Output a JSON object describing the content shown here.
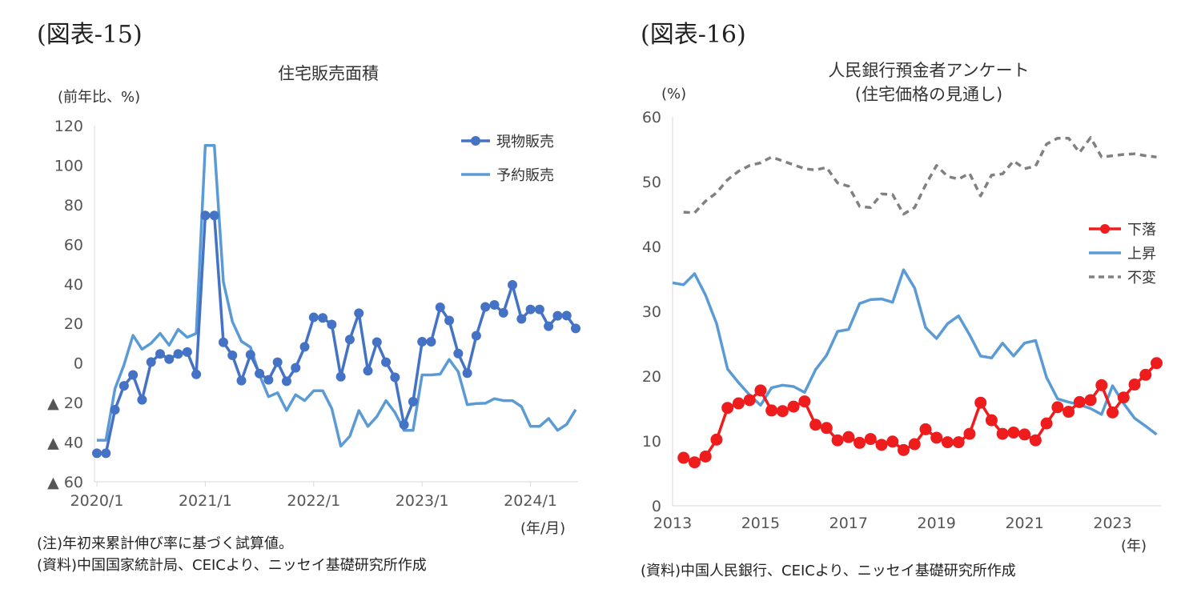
{
  "charts": [
    {
      "fig_label": "(図表-15)",
      "title": "住宅販売面積",
      "unit_label": "(前年比、%)",
      "x_unit_label": "(年/月)",
      "notes": [
        "(注)年初来累計伸び率に基づく試算値。",
        "(資料)中国国家統計局、CEICより、ニッセイ基礎研究所作成"
      ]
    },
    {
      "fig_label": "(図表-16)",
      "title_lines": [
        "人民銀行預金者アンケート",
        "(住宅価格の見通し)"
      ],
      "unit_label": "(%)",
      "x_unit_label": "(年)",
      "notes": [
        "(資料)中国人民銀行、CEICより、ニッセイ基礎研究所作成"
      ]
    }
  ],
  "chart_data": [
    {
      "type": "line",
      "title": "住宅販売面積",
      "ylabel": "(前年比、%)",
      "xlabel": "(年/月)",
      "ylim": [
        -60,
        120
      ],
      "yticks": [
        120,
        100,
        80,
        60,
        40,
        20,
        0,
        -20,
        -40,
        -60
      ],
      "ytick_labels": [
        "120",
        "100",
        "80",
        "60",
        "40",
        "20",
        "0",
        "▲ 20",
        "▲ 40",
        "▲ 60"
      ],
      "xtick_labels": [
        "2020/1",
        "2021/1",
        "2022/1",
        "2023/1",
        "2024/1"
      ],
      "xtick_index": [
        0,
        12,
        24,
        36,
        48
      ],
      "n_points": 54,
      "grid": false,
      "legend_position": "top-right",
      "series": [
        {
          "name": "現物販売",
          "color": "#4472c4",
          "marker": "circle",
          "values": [
            -45.6,
            -45.6,
            -23.6,
            -11.5,
            -6,
            -18.6,
            0.5,
            4.6,
            2,
            4.6,
            5.6,
            -5.7,
            74.6,
            74.6,
            10.5,
            3.9,
            -8.9,
            4.2,
            -5.3,
            -8.5,
            0.4,
            -9.2,
            -2.4,
            8.2,
            23.1,
            22.8,
            19.5,
            -6.9,
            11.9,
            25.2,
            -3.9,
            10.6,
            0.4,
            -7.2,
            -31.2,
            -19.5,
            10.8,
            10.8,
            28.2,
            21.5,
            4.8,
            -5.1,
            13.8,
            28.4,
            29.4,
            25.4,
            39.5,
            22.3,
            27.1,
            27.1,
            18.6,
            23.9,
            24,
            17.5
          ]
        },
        {
          "name": "予約販売",
          "color": "#5b9bd5",
          "marker": "none",
          "values": [
            -39,
            -39,
            -13,
            -1,
            14,
            7,
            10,
            15,
            9,
            17,
            13,
            15,
            110,
            110,
            41,
            21,
            11,
            8,
            -6,
            -17,
            -15,
            -24,
            -16,
            -19,
            -14,
            -14,
            -23,
            -42,
            -37,
            -24,
            -32,
            -27,
            -19,
            -25,
            -34,
            -34,
            -6,
            -6,
            -5.6,
            1.8,
            -4.4,
            -21,
            -20.5,
            -20.3,
            -18,
            -19,
            -19,
            -22,
            -32,
            -32,
            -28,
            -34,
            -31,
            -23.5
          ]
        }
      ]
    },
    {
      "type": "line",
      "title": "人民銀行預金者アンケート (住宅価格の見通し)",
      "ylabel": "(%)",
      "xlabel": "(年)",
      "ylim": [
        0,
        60
      ],
      "yticks": [
        0,
        10,
        20,
        30,
        40,
        50,
        60
      ],
      "xtick_labels": [
        "2013",
        "2015",
        "2017",
        "2019",
        "2021",
        "2023"
      ],
      "xtick_values": [
        2013,
        2015,
        2017,
        2019,
        2021,
        2023
      ],
      "xlim": [
        2013,
        2024.1
      ],
      "grid": false,
      "legend_position": "right",
      "series": [
        {
          "name": "下落",
          "color": "#ee1c1c",
          "marker": "circle",
          "dash": "solid",
          "x": [
            2013.25,
            2013.5,
            2013.75,
            2014,
            2014.25,
            2014.5,
            2014.75,
            2015,
            2015.25,
            2015.5,
            2015.75,
            2016,
            2016.25,
            2016.5,
            2016.75,
            2017,
            2017.25,
            2017.5,
            2017.75,
            2018,
            2018.25,
            2018.5,
            2018.75,
            2019,
            2019.25,
            2019.5,
            2019.75,
            2020,
            2020.25,
            2020.5,
            2020.75,
            2021,
            2021.25,
            2021.5,
            2021.75,
            2022,
            2022.25,
            2022.5,
            2022.75,
            2023,
            2023.25,
            2023.5,
            2023.75,
            2024
          ],
          "values": [
            7.4,
            6.7,
            7.6,
            10.2,
            15.1,
            15.8,
            16.3,
            17.8,
            14.7,
            14.6,
            15.3,
            16.1,
            12.5,
            12,
            10.1,
            10.6,
            9.7,
            10.3,
            9.4,
            9.9,
            8.6,
            9.5,
            11.8,
            10.5,
            9.8,
            9.8,
            11.1,
            15.9,
            13.2,
            11.1,
            11.3,
            11,
            10.1,
            12.7,
            15.2,
            14.5,
            16,
            16.3,
            18.6,
            14.4,
            16.7,
            18.7,
            20.2,
            22
          ]
        },
        {
          "name": "上昇",
          "color": "#5b9bd5",
          "marker": "none",
          "dash": "solid",
          "x": [
            2013,
            2013.25,
            2013.5,
            2013.75,
            2014,
            2014.25,
            2014.5,
            2014.75,
            2015,
            2015.25,
            2015.5,
            2015.75,
            2016,
            2016.25,
            2016.5,
            2016.75,
            2017,
            2017.25,
            2017.5,
            2017.75,
            2018,
            2018.25,
            2018.5,
            2018.75,
            2019,
            2019.25,
            2019.5,
            2019.75,
            2020,
            2020.25,
            2020.5,
            2020.75,
            2021,
            2021.25,
            2021.5,
            2021.75,
            2022,
            2022.25,
            2022.5,
            2022.75,
            2023,
            2023.25,
            2023.5,
            2023.75,
            2024
          ],
          "values": [
            34.4,
            34.1,
            35.8,
            32.5,
            28.1,
            21.1,
            19,
            17.1,
            15.5,
            18.2,
            18.6,
            18.4,
            17.5,
            21,
            23.2,
            26.9,
            27.2,
            31.2,
            31.8,
            31.9,
            31.4,
            36.4,
            33.6,
            27.5,
            25.8,
            28.1,
            29.3,
            26.4,
            23.1,
            22.8,
            25.1,
            23.1,
            25.1,
            25.5,
            19.8,
            16.5,
            16,
            15.6,
            15,
            14.1,
            18.5,
            15.8,
            13.5,
            12.3,
            11
          ]
        },
        {
          "name": "不変",
          "color": "#808080",
          "marker": "none",
          "dash": "dashed",
          "x": [
            2013.25,
            2013.5,
            2013.75,
            2014,
            2014.25,
            2014.5,
            2014.75,
            2015,
            2015.25,
            2015.5,
            2015.75,
            2016,
            2016.25,
            2016.5,
            2016.75,
            2017,
            2017.25,
            2017.5,
            2017.75,
            2018,
            2018.25,
            2018.5,
            2018.75,
            2019,
            2019.25,
            2019.5,
            2019.75,
            2020,
            2020.25,
            2020.5,
            2020.75,
            2021,
            2021.25,
            2021.5,
            2021.75,
            2022,
            2022.25,
            2022.5,
            2022.75,
            2023,
            2023.25,
            2023.5,
            2023.75,
            2024
          ],
          "values": [
            45.3,
            45.2,
            47,
            48.3,
            50.3,
            51.6,
            52.5,
            52.9,
            53.8,
            53.2,
            52.6,
            52,
            51.8,
            52.2,
            49.8,
            49.3,
            46.2,
            46,
            48.1,
            48,
            45,
            46,
            49.5,
            52.5,
            50.8,
            50.4,
            51.3,
            47.8,
            51,
            51.2,
            53.2,
            52,
            52.4,
            55.8,
            56.7,
            56.7,
            54.5,
            56.8,
            53.8,
            54,
            54.2,
            54.3,
            54,
            53.8
          ]
        }
      ]
    }
  ]
}
